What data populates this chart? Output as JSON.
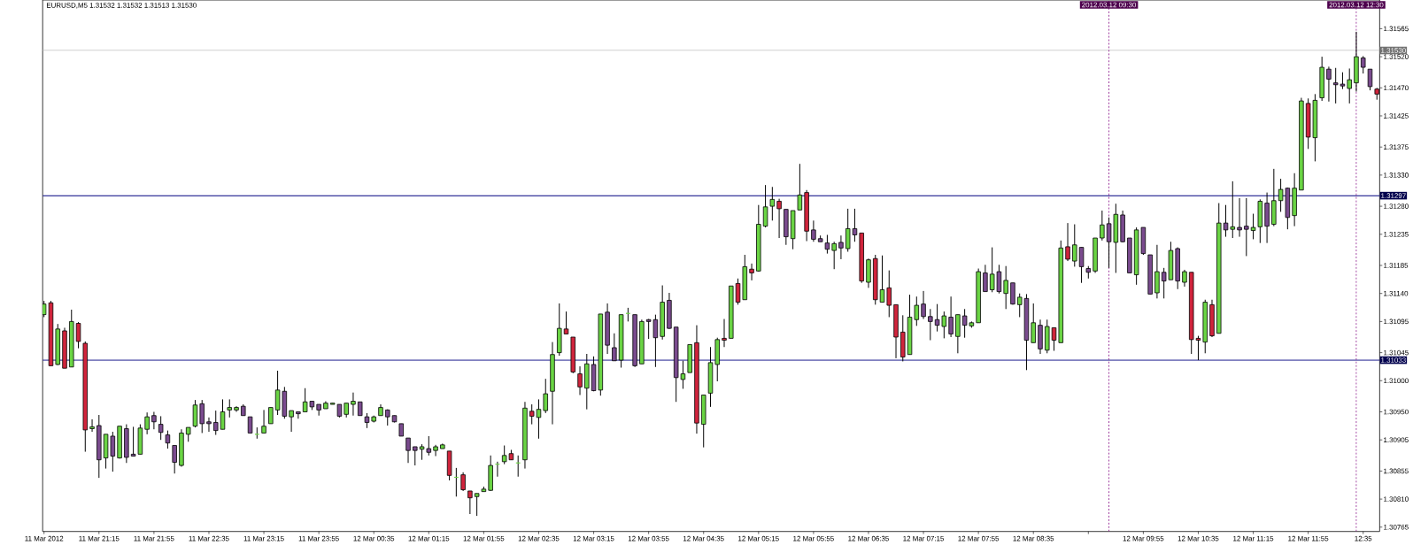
{
  "chart_data": {
    "type": "candlestick",
    "title": "EURUSD,M5  1.31532 1.31532 1.31513 1.31530",
    "x": [
      "2012-03-11T20:35",
      "2012-03-11T20:40",
      "2012-03-11T20:45",
      "2012-03-11T20:50",
      "2012-03-11T20:55",
      "2012-03-11T21:00",
      "2012-03-11T21:05",
      "2012-03-11T21:10",
      "2012-03-11T21:15",
      "2012-03-11T21:20",
      "2012-03-11T21:25",
      "2012-03-11T21:30",
      "2012-03-11T21:35",
      "2012-03-11T21:40",
      "2012-03-11T21:45",
      "2012-03-11T21:50",
      "2012-03-11T21:55",
      "2012-03-11T22:00",
      "2012-03-11T22:05",
      "2012-03-11T22:10",
      "2012-03-11T22:15",
      "2012-03-11T22:20",
      "2012-03-11T22:25",
      "2012-03-11T22:30",
      "2012-03-11T22:35",
      "2012-03-11T22:40",
      "2012-03-11T22:45",
      "2012-03-11T22:50",
      "2012-03-11T22:55",
      "2012-03-11T23:00",
      "2012-03-11T23:05",
      "2012-03-11T23:10",
      "2012-03-11T23:15",
      "2012-03-11T23:20",
      "2012-03-11T23:25",
      "2012-03-11T23:30",
      "2012-03-11T23:35",
      "2012-03-11T23:40",
      "2012-03-11T23:45",
      "2012-03-11T23:50",
      "2012-03-11T23:55",
      "2012-03-12T00:00",
      "2012-03-12T00:05",
      "2012-03-12T00:10",
      "2012-03-12T00:15",
      "2012-03-12T00:20",
      "2012-03-12T00:25",
      "2012-03-12T00:30",
      "2012-03-12T00:35",
      "2012-03-12T00:40",
      "2012-03-12T00:45",
      "2012-03-12T00:50",
      "2012-03-12T00:55",
      "2012-03-12T01:00",
      "2012-03-12T01:05",
      "2012-03-12T01:10",
      "2012-03-12T01:15",
      "2012-03-12T01:20",
      "2012-03-12T01:25",
      "2012-03-12T01:30",
      "2012-03-12T01:35",
      "2012-03-12T01:40",
      "2012-03-12T01:45",
      "2012-03-12T01:50",
      "2012-03-12T01:55",
      "2012-03-12T02:00",
      "2012-03-12T02:05",
      "2012-03-12T02:10",
      "2012-03-12T02:15",
      "2012-03-12T02:20",
      "2012-03-12T02:25",
      "2012-03-12T02:30",
      "2012-03-12T02:35",
      "2012-03-12T02:40",
      "2012-03-12T02:45",
      "2012-03-12T02:50",
      "2012-03-12T02:55",
      "2012-03-12T03:00",
      "2012-03-12T03:05",
      "2012-03-12T03:10",
      "2012-03-12T03:15",
      "2012-03-12T03:20",
      "2012-03-12T03:25",
      "2012-03-12T03:30",
      "2012-03-12T03:35",
      "2012-03-12T03:40",
      "2012-03-12T03:45",
      "2012-03-12T03:50",
      "2012-03-12T03:55",
      "2012-03-12T04:00",
      "2012-03-12T04:05",
      "2012-03-12T04:10",
      "2012-03-12T04:15",
      "2012-03-12T04:20",
      "2012-03-12T04:25",
      "2012-03-12T04:30",
      "2012-03-12T04:35",
      "2012-03-12T04:40",
      "2012-03-12T04:45",
      "2012-03-12T04:50",
      "2012-03-12T04:55",
      "2012-03-12T05:00",
      "2012-03-12T05:05",
      "2012-03-12T05:10",
      "2012-03-12T05:15",
      "2012-03-12T05:20",
      "2012-03-12T05:25",
      "2012-03-12T05:30",
      "2012-03-12T05:35",
      "2012-03-12T05:40",
      "2012-03-12T05:45",
      "2012-03-12T05:50",
      "2012-03-12T05:55",
      "2012-03-12T06:00",
      "2012-03-12T06:05",
      "2012-03-12T06:10",
      "2012-03-12T06:15",
      "2012-03-12T06:20",
      "2012-03-12T06:25",
      "2012-03-12T06:30",
      "2012-03-12T06:35",
      "2012-03-12T06:40",
      "2012-03-12T06:45",
      "2012-03-12T06:50",
      "2012-03-12T06:55",
      "2012-03-12T07:00",
      "2012-03-12T07:05",
      "2012-03-12T07:10",
      "2012-03-12T07:15",
      "2012-03-12T07:20",
      "2012-03-12T07:25",
      "2012-03-12T07:30",
      "2012-03-12T07:35",
      "2012-03-12T07:40",
      "2012-03-12T07:45",
      "2012-03-12T07:50",
      "2012-03-12T07:55",
      "2012-03-12T08:00",
      "2012-03-12T08:05",
      "2012-03-12T08:10",
      "2012-03-12T08:15",
      "2012-03-12T08:20",
      "2012-03-12T08:25",
      "2012-03-12T08:30",
      "2012-03-12T08:35",
      "2012-03-12T08:40",
      "2012-03-12T08:45",
      "2012-03-12T08:50",
      "2012-03-12T08:55",
      "2012-03-12T09:00",
      "2012-03-12T09:05",
      "2012-03-12T09:10",
      "2012-03-12T09:15",
      "2012-03-12T09:20",
      "2012-03-12T09:25",
      "2012-03-12T09:30",
      "2012-03-12T09:35",
      "2012-03-12T09:40",
      "2012-03-12T09:45",
      "2012-03-12T09:50",
      "2012-03-12T09:55",
      "2012-03-12T10:00",
      "2012-03-12T10:05",
      "2012-03-12T10:10",
      "2012-03-12T10:15",
      "2012-03-12T10:20",
      "2012-03-12T10:25",
      "2012-03-12T10:30",
      "2012-03-12T10:35",
      "2012-03-12T10:40",
      "2012-03-12T10:45",
      "2012-03-12T10:50",
      "2012-03-12T10:55",
      "2012-03-12T11:00",
      "2012-03-12T11:05",
      "2012-03-12T11:10",
      "2012-03-12T11:15",
      "2012-03-12T11:20",
      "2012-03-12T11:25",
      "2012-03-12T11:30",
      "2012-03-12T11:35",
      "2012-03-12T11:40",
      "2012-03-12T11:45",
      "2012-03-12T11:50",
      "2012-03-12T11:55",
      "2012-03-12T12:00",
      "2012-03-12T12:05",
      "2012-03-12T12:10",
      "2012-03-12T12:15",
      "2012-03-12T12:20",
      "2012-03-12T12:25",
      "2012-03-12T12:30",
      "2012-03-12T12:35",
      "2012-03-12T12:40",
      "2012-03-12T12:45"
    ],
    "ohlc": [
      [
        1.31106,
        1.31128,
        1.31102,
        1.31123
      ],
      [
        1.31125,
        1.31128,
        1.31024,
        1.31024
      ],
      [
        1.31026,
        1.31091,
        1.31025,
        1.31083
      ],
      [
        1.3108,
        1.31085,
        1.3102,
        1.3102
      ],
      [
        1.31022,
        1.31114,
        1.31022,
        1.31095
      ],
      [
        1.31092,
        1.31094,
        1.31052,
        1.31063
      ],
      [
        1.3106,
        1.31063,
        1.30886,
        1.30921
      ],
      [
        1.30923,
        1.30938,
        1.30918,
        1.30926
      ],
      [
        1.30928,
        1.30945,
        1.30844,
        1.30873
      ],
      [
        1.30876,
        1.30914,
        1.30859,
        1.30914
      ],
      [
        1.30911,
        1.30918,
        1.30854,
        1.30879
      ],
      [
        1.30876,
        1.30927,
        1.30875,
        1.30927
      ],
      [
        1.30923,
        1.3093,
        1.30868,
        1.30877
      ],
      [
        1.30882,
        1.30926,
        1.30879,
        1.30879
      ],
      [
        1.30882,
        1.3093,
        1.30882,
        1.30924
      ],
      [
        1.30922,
        1.30949,
        1.30914,
        1.30942
      ],
      [
        1.30944,
        1.3095,
        1.30922,
        1.30934
      ],
      [
        1.3093,
        1.30943,
        1.30905,
        1.30917
      ],
      [
        1.30913,
        1.3092,
        1.30891,
        1.309
      ],
      [
        1.30896,
        1.30896,
        1.30851,
        1.30869
      ],
      [
        1.30864,
        1.30922,
        1.30862,
        1.30916
      ],
      [
        1.30914,
        1.30925,
        1.30902,
        1.30925
      ],
      [
        1.30927,
        1.30969,
        1.30925,
        1.30961
      ],
      [
        1.30963,
        1.30969,
        1.30916,
        1.30931
      ],
      [
        1.30934,
        1.30941,
        1.30918,
        1.30931
      ],
      [
        1.30933,
        1.30952,
        1.30913,
        1.3092
      ],
      [
        1.30922,
        1.3097,
        1.30922,
        1.3095
      ],
      [
        1.30953,
        1.3097,
        1.30941,
        1.30957
      ],
      [
        1.30953,
        1.30959,
        1.3095,
        1.30957
      ],
      [
        1.30959,
        1.30962,
        1.30944,
        1.30944
      ],
      [
        1.30942,
        1.30942,
        1.30916,
        1.30916
      ],
      [
        1.30914,
        1.30925,
        1.30907,
        1.30914
      ],
      [
        1.30916,
        1.30953,
        1.30916,
        1.30927
      ],
      [
        1.30931,
        1.30957,
        1.30931,
        1.30957
      ],
      [
        1.30953,
        1.31016,
        1.30945,
        1.30985
      ],
      [
        1.30983,
        1.3099,
        1.30939,
        1.30943
      ],
      [
        1.30942,
        1.30952,
        1.30918,
        1.30952
      ],
      [
        1.3095,
        1.3095,
        1.30939,
        1.30947
      ],
      [
        1.3095,
        1.30988,
        1.3095,
        1.30966
      ],
      [
        1.30967,
        1.30967,
        1.30953,
        1.30958
      ],
      [
        1.30962,
        1.30962,
        1.30944,
        1.30953
      ],
      [
        1.30955,
        1.30967,
        1.30955,
        1.30964
      ],
      [
        1.30962,
        1.30964,
        1.30962,
        1.30964
      ],
      [
        1.30962,
        1.30962,
        1.30941,
        1.30943
      ],
      [
        1.30946,
        1.30964,
        1.30941,
        1.30964
      ],
      [
        1.30962,
        1.30981,
        1.30944,
        1.30967
      ],
      [
        1.30966,
        1.30966,
        1.30944,
        1.30944
      ],
      [
        1.30942,
        1.30948,
        1.30924,
        1.30933
      ],
      [
        1.30935,
        1.30944,
        1.30933,
        1.30942
      ],
      [
        1.30944,
        1.30962,
        1.30944,
        1.30957
      ],
      [
        1.30953,
        1.30954,
        1.30928,
        1.30942
      ],
      [
        1.30944,
        1.30944,
        1.30933,
        1.30934
      ],
      [
        1.30931,
        1.30931,
        1.30911,
        1.30911
      ],
      [
        1.30908,
        1.30908,
        1.30868,
        1.30888
      ],
      [
        1.30894,
        1.30894,
        1.30864,
        1.30888
      ],
      [
        1.3089,
        1.30898,
        1.30873,
        1.30894
      ],
      [
        1.30891,
        1.30911,
        1.3088,
        1.30885
      ],
      [
        1.30888,
        1.30897,
        1.30879,
        1.30894
      ],
      [
        1.30891,
        1.30899,
        1.30891,
        1.30897
      ],
      [
        1.30887,
        1.30887,
        1.3084,
        1.30848
      ],
      [
        1.30845,
        1.3086,
        1.30814,
        1.30845
      ],
      [
        1.30849,
        1.30853,
        1.30823,
        1.30825
      ],
      [
        1.30823,
        1.30823,
        1.30786,
        1.30812
      ],
      [
        1.30814,
        1.30819,
        1.30783,
        1.30819
      ],
      [
        1.30822,
        1.3083,
        1.30822,
        1.30826
      ],
      [
        1.30824,
        1.3088,
        1.30823,
        1.30864
      ],
      [
        1.30866,
        1.3087,
        1.30846,
        1.30866
      ],
      [
        1.3087,
        1.30896,
        1.30866,
        1.3088
      ],
      [
        1.30883,
        1.30889,
        1.30873,
        1.30873
      ],
      [
        1.30868,
        1.3088,
        1.30846,
        1.30868
      ],
      [
        1.30873,
        1.30966,
        1.30859,
        1.30956
      ],
      [
        1.30951,
        1.30962,
        1.3093,
        1.30943
      ],
      [
        1.30941,
        1.3097,
        1.30907,
        1.30954
      ],
      [
        1.30952,
        1.31003,
        1.30948,
        1.30979
      ],
      [
        1.30983,
        1.31062,
        1.3093,
        1.31042
      ],
      [
        1.31045,
        1.31124,
        1.3104,
        1.31084
      ],
      [
        1.31083,
        1.31111,
        1.31075,
        1.31075
      ],
      [
        1.3107,
        1.3107,
        1.31012,
        1.31014
      ],
      [
        1.31011,
        1.31023,
        1.30977,
        1.3099
      ],
      [
        1.30988,
        1.31043,
        1.30954,
        1.31027
      ],
      [
        1.31026,
        1.31039,
        1.30983,
        1.30984
      ],
      [
        1.30985,
        1.31107,
        1.30976,
        1.31107
      ],
      [
        1.3111,
        1.31124,
        1.31043,
        1.31057
      ],
      [
        1.31053,
        1.31076,
        1.31032,
        1.31032
      ],
      [
        1.31033,
        1.31106,
        1.31021,
        1.31106
      ],
      [
        1.31108,
        1.31117,
        1.31095,
        1.31108
      ],
      [
        1.31106,
        1.31106,
        1.31022,
        1.31024
      ],
      [
        1.31027,
        1.31098,
        1.31027,
        1.31095
      ],
      [
        1.31098,
        1.31099,
        1.31067,
        1.31095
      ],
      [
        1.31098,
        1.31106,
        1.31022,
        1.31069
      ],
      [
        1.31071,
        1.31153,
        1.31066,
        1.31126
      ],
      [
        1.31129,
        1.31141,
        1.31083,
        1.31084
      ],
      [
        1.31086,
        1.31086,
        1.30966,
        1.31005
      ],
      [
        1.31002,
        1.31032,
        1.30987,
        1.31011
      ],
      [
        1.31013,
        1.31058,
        1.31013,
        1.31058
      ],
      [
        1.31061,
        1.31089,
        1.30915,
        1.30932
      ],
      [
        1.3093,
        1.30977,
        1.30893,
        1.30977
      ],
      [
        1.3098,
        1.31054,
        1.30958,
        1.31029
      ],
      [
        1.31026,
        1.31069,
        1.30999,
        1.31066
      ],
      [
        1.31068,
        1.31099,
        1.31054,
        1.31065
      ],
      [
        1.31068,
        1.31152,
        1.31068,
        1.31152
      ],
      [
        1.31156,
        1.31164,
        1.31122,
        1.31126
      ],
      [
        1.3113,
        1.31202,
        1.3113,
        1.31183
      ],
      [
        1.31179,
        1.31188,
        1.31161,
        1.31173
      ],
      [
        1.31176,
        1.31282,
        1.31175,
        1.31251
      ],
      [
        1.31248,
        1.31314,
        1.31246,
        1.31279
      ],
      [
        1.3128,
        1.31311,
        1.31257,
        1.31291
      ],
      [
        1.31288,
        1.31292,
        1.31229,
        1.31276
      ],
      [
        1.31275,
        1.31275,
        1.31218,
        1.31231
      ],
      [
        1.31228,
        1.31273,
        1.31211,
        1.31273
      ],
      [
        1.31274,
        1.31348,
        1.31274,
        1.31298
      ],
      [
        1.31302,
        1.31306,
        1.31224,
        1.3124
      ],
      [
        1.31242,
        1.31257,
        1.31223,
        1.31227
      ],
      [
        1.31228,
        1.31233,
        1.31223,
        1.31223
      ],
      [
        1.31221,
        1.31234,
        1.31204,
        1.31211
      ],
      [
        1.31209,
        1.31223,
        1.31179,
        1.3122
      ],
      [
        1.31222,
        1.31233,
        1.31195,
        1.31213
      ],
      [
        1.31212,
        1.31276,
        1.31207,
        1.31244
      ],
      [
        1.31244,
        1.31276,
        1.31223,
        1.31234
      ],
      [
        1.31237,
        1.31237,
        1.31157,
        1.3116
      ],
      [
        1.31158,
        1.31196,
        1.31149,
        1.31194
      ],
      [
        1.31196,
        1.31202,
        1.31122,
        1.3113
      ],
      [
        1.31126,
        1.31201,
        1.31126,
        1.31146
      ],
      [
        1.31149,
        1.31177,
        1.31102,
        1.31121
      ],
      [
        1.31122,
        1.31122,
        1.31036,
        1.3107
      ],
      [
        1.31078,
        1.31105,
        1.31031,
        1.31038
      ],
      [
        1.31042,
        1.31138,
        1.31042,
        1.31102
      ],
      [
        1.31098,
        1.31135,
        1.31088,
        1.31121
      ],
      [
        1.31123,
        1.31144,
        1.31099,
        1.31103
      ],
      [
        1.31103,
        1.31115,
        1.31065,
        1.31095
      ],
      [
        1.31098,
        1.31123,
        1.31079,
        1.31089
      ],
      [
        1.31087,
        1.31111,
        1.31068,
        1.31104
      ],
      [
        1.31102,
        1.31135,
        1.3107,
        1.31075
      ],
      [
        1.31071,
        1.31106,
        1.31044,
        1.31106
      ],
      [
        1.31104,
        1.31115,
        1.31069,
        1.31089
      ],
      [
        1.31088,
        1.31095,
        1.31085,
        1.31093
      ],
      [
        1.31093,
        1.3118,
        1.31093,
        1.31175
      ],
      [
        1.31173,
        1.31186,
        1.31143,
        1.31143
      ],
      [
        1.31146,
        1.31214,
        1.31142,
        1.31171
      ],
      [
        1.31175,
        1.31186,
        1.3114,
        1.31143
      ],
      [
        1.3114,
        1.31184,
        1.31115,
        1.31161
      ],
      [
        1.31157,
        1.31157,
        1.31122,
        1.31123
      ],
      [
        1.31122,
        1.3114,
        1.31102,
        1.31134
      ],
      [
        1.31132,
        1.31139,
        1.31017,
        1.31065
      ],
      [
        1.31061,
        1.31124,
        1.31061,
        1.31093
      ],
      [
        1.31089,
        1.31098,
        1.31043,
        1.31051
      ],
      [
        1.31049,
        1.31098,
        1.31044,
        1.31087
      ],
      [
        1.31085,
        1.31085,
        1.31048,
        1.31065
      ],
      [
        1.31061,
        1.31225,
        1.31061,
        1.31213
      ],
      [
        1.31215,
        1.31253,
        1.31192,
        1.31195
      ],
      [
        1.31192,
        1.31251,
        1.31183,
        1.31218
      ],
      [
        1.31214,
        1.31214,
        1.31157,
        1.31183
      ],
      [
        1.3118,
        1.31184,
        1.31164,
        1.31174
      ],
      [
        1.31176,
        1.31229,
        1.31173,
        1.31229
      ],
      [
        1.31229,
        1.31273,
        1.31225,
        1.3125
      ],
      [
        1.31252,
        1.31262,
        1.31181,
        1.31223
      ],
      [
        1.31222,
        1.31284,
        1.31173,
        1.31267
      ],
      [
        1.31266,
        1.31273,
        1.31222,
        1.31223
      ],
      [
        1.31229,
        1.31229,
        1.31173,
        1.31173
      ],
      [
        1.3117,
        1.31246,
        1.31154,
        1.31242
      ],
      [
        1.31246,
        1.31246,
        1.31202,
        1.31204
      ],
      [
        1.31202,
        1.31202,
        1.31139,
        1.31139
      ],
      [
        1.31141,
        1.31218,
        1.31132,
        1.31175
      ],
      [
        1.31174,
        1.31181,
        1.31132,
        1.3116
      ],
      [
        1.31162,
        1.31223,
        1.31162,
        1.31209
      ],
      [
        1.31212,
        1.31214,
        1.31147,
        1.3116
      ],
      [
        1.31158,
        1.31178,
        1.31151,
        1.31175
      ],
      [
        1.31174,
        1.31174,
        1.31043,
        1.31066
      ],
      [
        1.31068,
        1.31072,
        1.31033,
        1.31065
      ],
      [
        1.31062,
        1.3113,
        1.31044,
        1.31126
      ],
      [
        1.31122,
        1.3113,
        1.3107,
        1.31072
      ],
      [
        1.31076,
        1.31285,
        1.31076,
        1.31253
      ],
      [
        1.31253,
        1.31282,
        1.31231,
        1.31242
      ],
      [
        1.31243,
        1.3132,
        1.31229,
        1.31247
      ],
      [
        1.31246,
        1.31293,
        1.31231,
        1.31242
      ],
      [
        1.31248,
        1.31293,
        1.312,
        1.31243
      ],
      [
        1.31241,
        1.31268,
        1.31227,
        1.31246
      ],
      [
        1.31247,
        1.31291,
        1.31221,
        1.31288
      ],
      [
        1.31285,
        1.31302,
        1.31221,
        1.31248
      ],
      [
        1.31251,
        1.3134,
        1.31248,
        1.31289
      ],
      [
        1.31289,
        1.31324,
        1.31271,
        1.31307
      ],
      [
        1.31309,
        1.3131,
        1.31243,
        1.31262
      ],
      [
        1.31265,
        1.31333,
        1.31248,
        1.31309
      ],
      [
        1.31306,
        1.31454,
        1.31306,
        1.31449
      ],
      [
        1.31445,
        1.31453,
        1.31372,
        1.31391
      ],
      [
        1.3139,
        1.3146,
        1.31352,
        1.3145
      ],
      [
        1.31454,
        1.3152,
        1.31449,
        1.31503
      ],
      [
        1.315,
        1.31504,
        1.31448,
        1.31484
      ],
      [
        1.31478,
        1.31502,
        1.31445,
        1.31475
      ],
      [
        1.31476,
        1.31495,
        1.31468,
        1.31473
      ],
      [
        1.31469,
        1.31501,
        1.31445,
        1.31483
      ],
      [
        1.31478,
        1.3156,
        1.31464,
        1.3152
      ],
      [
        1.31518,
        1.31521,
        1.31493,
        1.31503
      ],
      [
        1.315,
        1.315,
        1.31466,
        1.31472
      ],
      [
        1.31468,
        1.3147,
        1.31451,
        1.3146
      ]
    ],
    "colors": [
      "#6ad444",
      "#d0243c",
      "#6ad444",
      "#d0243c",
      "#6ad444",
      "#d0243c",
      "#d0243c",
      "#6ad444",
      "#7a4b8e",
      "#6ad444",
      "#7a4b8e",
      "#6ad444",
      "#7a4b8e",
      "#7a4b8e",
      "#6ad444",
      "#6ad444",
      "#7a4b8e",
      "#7a4b8e",
      "#7a4b8e",
      "#7a4b8e",
      "#6ad444",
      "#6ad444",
      "#6ad444",
      "#7a4b8e",
      "#7a4b8e",
      "#7a4b8e",
      "#6ad444",
      "#6ad444",
      "#6ad444",
      "#7a4b8e",
      "#7a4b8e",
      "#6ad444",
      "#6ad444",
      "#6ad444",
      "#6ad444",
      "#7a4b8e",
      "#6ad444",
      "#7a4b8e",
      "#6ad444",
      "#7a4b8e",
      "#7a4b8e",
      "#6ad444",
      "#6ad444",
      "#7a4b8e",
      "#6ad444",
      "#6ad444",
      "#7a4b8e",
      "#7a4b8e",
      "#6ad444",
      "#6ad444",
      "#7a4b8e",
      "#7a4b8e",
      "#7a4b8e",
      "#7a4b8e",
      "#7a4b8e",
      "#6ad444",
      "#7a4b8e",
      "#6ad444",
      "#6ad444",
      "#d0243c",
      "#6ad444",
      "#d0243c",
      "#d0243c",
      "#6ad444",
      "#6ad444",
      "#6ad444",
      "#6ad444",
      "#6ad444",
      "#d0243c",
      "#6ad444",
      "#6ad444",
      "#d0243c",
      "#6ad444",
      "#6ad444",
      "#6ad444",
      "#6ad444",
      "#d0243c",
      "#d0243c",
      "#d0243c",
      "#6ad444",
      "#7a4b8e",
      "#6ad444",
      "#7a4b8e",
      "#7a4b8e",
      "#6ad444",
      "#6ad444",
      "#7a4b8e",
      "#6ad444",
      "#7a4b8e",
      "#7a4b8e",
      "#6ad444",
      "#7a4b8e",
      "#7a4b8e",
      "#6ad444",
      "#6ad444",
      "#d0243c",
      "#6ad444",
      "#6ad444",
      "#6ad444",
      "#d0243c",
      "#6ad444",
      "#d0243c",
      "#6ad444",
      "#d0243c",
      "#6ad444",
      "#6ad444",
      "#6ad444",
      "#d0243c",
      "#7a4b8e",
      "#6ad444",
      "#6ad444",
      "#d0243c",
      "#7a4b8e",
      "#7a4b8e",
      "#7a4b8e",
      "#6ad444",
      "#7a4b8e",
      "#6ad444",
      "#7a4b8e",
      "#d0243c",
      "#6ad444",
      "#d0243c",
      "#6ad444",
      "#d0243c",
      "#d0243c",
      "#d0243c",
      "#6ad444",
      "#6ad444",
      "#7a4b8e",
      "#7a4b8e",
      "#7a4b8e",
      "#6ad444",
      "#7a4b8e",
      "#6ad444",
      "#7a4b8e",
      "#6ad444",
      "#6ad444",
      "#7a4b8e",
      "#6ad444",
      "#7a4b8e",
      "#6ad444",
      "#7a4b8e",
      "#6ad444",
      "#7a4b8e",
      "#6ad444",
      "#7a4b8e",
      "#6ad444",
      "#d0243c",
      "#6ad444",
      "#d0243c",
      "#6ad444",
      "#7a4b8e",
      "#7a4b8e",
      "#6ad444",
      "#6ad444",
      "#7a4b8e",
      "#6ad444",
      "#7a4b8e",
      "#7a4b8e",
      "#6ad444",
      "#7a4b8e",
      "#7a4b8e",
      "#6ad444",
      "#7a4b8e",
      "#6ad444",
      "#7a4b8e",
      "#6ad444",
      "#d0243c",
      "#d0243c",
      "#6ad444",
      "#d0243c",
      "#6ad444",
      "#7a4b8e",
      "#6ad444",
      "#7a4b8e",
      "#7a4b8e",
      "#6ad444",
      "#6ad444",
      "#7a4b8e",
      "#6ad444",
      "#6ad444",
      "#7a4b8e",
      "#6ad444",
      "#6ad444",
      "#d0243c",
      "#6ad444",
      "#6ad444",
      "#7a4b8e",
      "#7a4b8e",
      "#7a4b8e",
      "#6ad444",
      "#6ad444",
      "#7a4b8e",
      "#7a4b8e",
      "#d0243c"
    ],
    "xlim": [
      "2012-03-11T20:34",
      "2012-03-12T12:47"
    ],
    "ylim": [
      1.30758,
      1.31611
    ],
    "xticks": [
      {
        "value": "2012-03-11T20:35",
        "label": "11 Mar 2012"
      },
      {
        "value": "2012-03-11T21:15",
        "label": "11 Mar 21:15"
      },
      {
        "value": "2012-03-11T21:55",
        "label": "11 Mar 21:55"
      },
      {
        "value": "2012-03-11T22:35",
        "label": "11 Mar 22:35"
      },
      {
        "value": "2012-03-11T23:15",
        "label": "11 Mar 23:15"
      },
      {
        "value": "2012-03-11T23:55",
        "label": "11 Mar 23:55"
      },
      {
        "value": "2012-03-12T00:35",
        "label": "12 Mar 00:35"
      },
      {
        "value": "2012-03-12T01:15",
        "label": "12 Mar 01:15"
      },
      {
        "value": "2012-03-12T01:55",
        "label": "12 Mar 01:55"
      },
      {
        "value": "2012-03-12T02:35",
        "label": "12 Mar 02:35"
      },
      {
        "value": "2012-03-12T03:15",
        "label": "12 Mar 03:15"
      },
      {
        "value": "2012-03-12T03:55",
        "label": "12 Mar 03:55"
      },
      {
        "value": "2012-03-12T04:35",
        "label": "12 Mar 04:35"
      },
      {
        "value": "2012-03-12T05:15",
        "label": "12 Mar 05:15"
      },
      {
        "value": "2012-03-12T05:55",
        "label": "12 Mar 05:55"
      },
      {
        "value": "2012-03-12T06:35",
        "label": "12 Mar 06:35"
      },
      {
        "value": "2012-03-12T07:15",
        "label": "12 Mar 07:15"
      },
      {
        "value": "2012-03-12T07:55",
        "label": "12 Mar 07:55"
      },
      {
        "value": "2012-03-12T08:35",
        "label": "12 Mar 08:35"
      },
      {
        "value": "2012-03-12T09:15",
        "label": null
      },
      {
        "value": "2012-03-12T09:55",
        "label": "12 Mar 09:55"
      },
      {
        "value": "2012-03-12T10:35",
        "label": "12 Mar 10:35"
      },
      {
        "value": "2012-03-12T11:15",
        "label": "12 Mar 11:15"
      },
      {
        "value": "2012-03-12T11:55",
        "label": "12 Mar 11:55"
      },
      {
        "value": "2012-03-12T12:35",
        "label": "12:35"
      }
    ],
    "yticks": [
      1.31565,
      {
        "value": 1.3152,
        "label": "1.31520"
      },
      {
        "value": 1.3147,
        "label": "1.31470"
      },
      1.31425,
      1.31375,
      {
        "value": 1.3133,
        "label": "1.31330"
      },
      {
        "value": 1.3128,
        "label": "1.31280"
      },
      1.31235,
      1.31185,
      {
        "value": 1.3114,
        "label": "1.31140"
      },
      1.31095,
      1.31045,
      {
        "value": 1.31,
        "label": "1.31000"
      },
      {
        "value": 1.3095,
        "label": "1.30950"
      },
      1.30905,
      1.30855,
      {
        "value": 1.3081,
        "label": "1.30810"
      },
      1.30765
    ],
    "ref_lines": [
      {
        "axis": "y",
        "value": 1.3153,
        "label": "1.31530",
        "color": "#c0c0c0",
        "line_style": "solid"
      },
      {
        "axis": "y",
        "value": 1.31297,
        "label": "1.31297",
        "color": "#000080",
        "line_style": "solid"
      },
      {
        "axis": "y",
        "value": 1.31033,
        "label": "1.31033",
        "color": "#000080",
        "line_style": "solid"
      },
      {
        "axis": "x",
        "value": "2012-03-12T09:30",
        "label": "2012.03.12 09:30",
        "color": "#800080",
        "line_style": "dotted"
      },
      {
        "axis": "x",
        "value": "2012-03-12T12:30",
        "label": "2012.03.12 12:30",
        "color": "#800080",
        "line_style": "dotted"
      }
    ]
  }
}
